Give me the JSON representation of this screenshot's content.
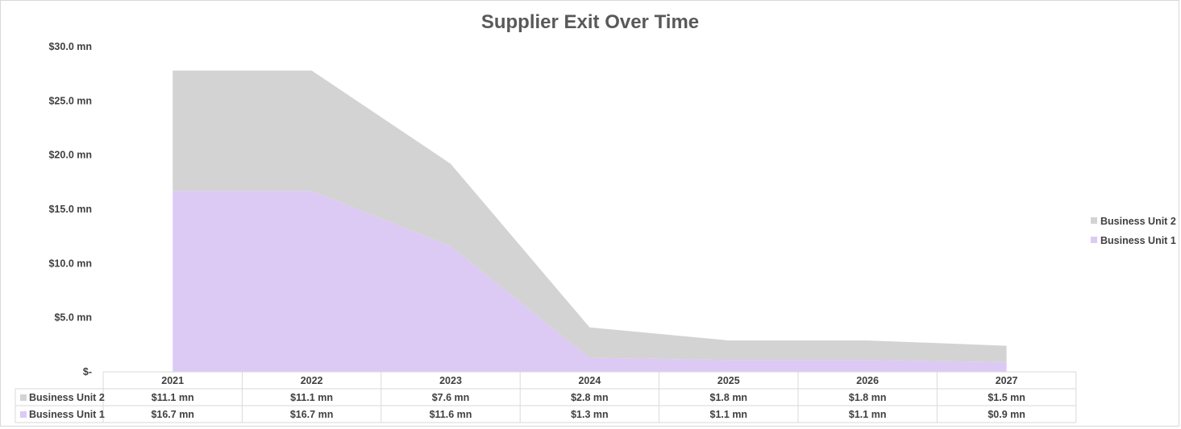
{
  "chart_data": {
    "type": "area",
    "stacked": true,
    "title": "Supplier Exit Over Time",
    "categories": [
      "2021",
      "2022",
      "2023",
      "2024",
      "2025",
      "2026",
      "2027"
    ],
    "series": [
      {
        "name": "Business Unit 1",
        "values": [
          16.7,
          16.7,
          11.6,
          1.3,
          1.1,
          1.1,
          0.9
        ],
        "labels": [
          "$16.7 mn",
          "$16.7 mn",
          "$11.6 mn",
          "$1.3 mn",
          "$1.1 mn",
          "$1.1 mn",
          "$0.9 mn"
        ],
        "color": "#dccaf5"
      },
      {
        "name": "Business Unit 2",
        "values": [
          11.1,
          11.1,
          7.6,
          2.8,
          1.8,
          1.8,
          1.5
        ],
        "labels": [
          "$11.1 mn",
          "$11.1 mn",
          "$7.6 mn",
          "$2.8 mn",
          "$1.8 mn",
          "$1.8 mn",
          "$1.5 mn"
        ],
        "color": "#d3d3d3"
      }
    ],
    "ylim": [
      0,
      30
    ],
    "y_ticks": [
      0,
      5,
      10,
      15,
      20,
      25,
      30
    ],
    "y_tick_labels": [
      "$-",
      "$5.0 mn",
      "$10.0 mn",
      "$15.0 mn",
      "$20.0 mn",
      "$25.0 mn",
      "$30.0 mn"
    ],
    "grid": false,
    "legend_position": "right",
    "legend_order": [
      "Business Unit 2",
      "Business Unit 1"
    ],
    "data_table": true,
    "table_row_order": [
      "Business Unit 2",
      "Business Unit 1"
    ]
  }
}
